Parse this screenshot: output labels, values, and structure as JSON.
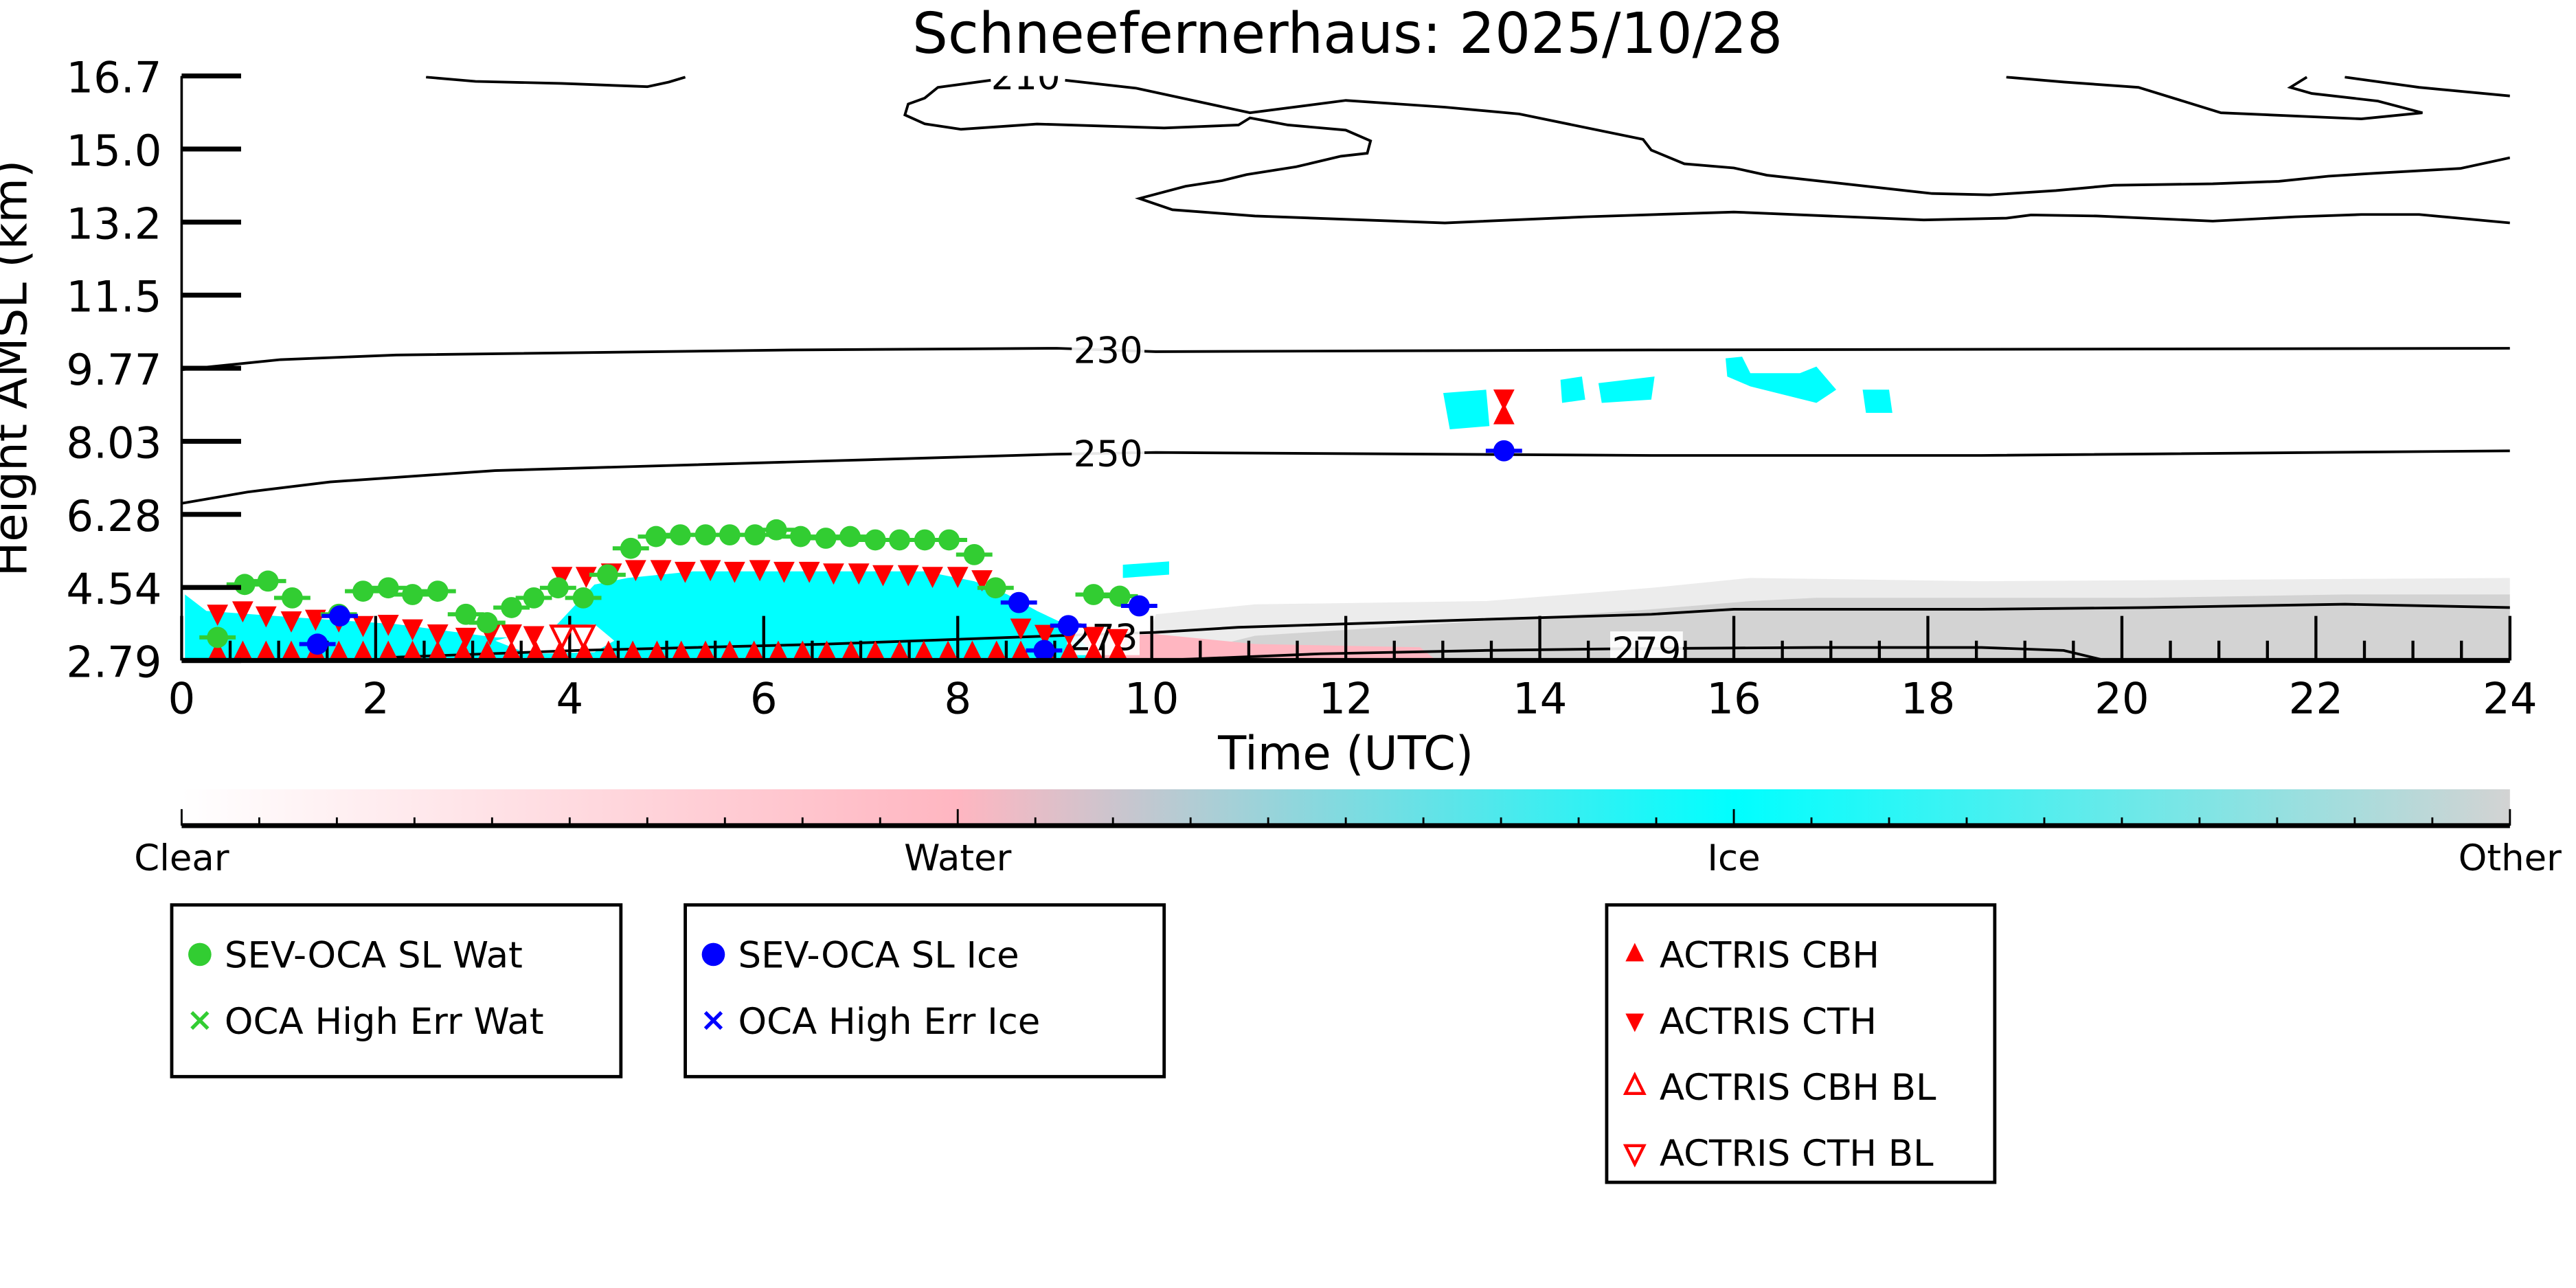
{
  "chart_data": {
    "type": "scatter",
    "title": "Schneefernerhaus: 2025/10/28",
    "xlabel": "Time (UTC)",
    "ylabel": "Height AMSL (km)",
    "xlim": [
      0,
      24
    ],
    "ylim": [
      2.79,
      16.7
    ],
    "xticks": [
      "0",
      "2",
      "4",
      "6",
      "8",
      "10",
      "12",
      "14",
      "16",
      "18",
      "20",
      "22",
      "24"
    ],
    "yticks": [
      "2.79",
      "4.54",
      "6.28",
      "8.03",
      "9.77",
      "11.5",
      "13.2",
      "15.0",
      "16.7"
    ],
    "colorbar": {
      "labels": [
        "Clear",
        "Water",
        "Ice",
        "Other"
      ],
      "colors": [
        "#ffffff",
        "#ffb6c1",
        "#00ffff",
        "#d3d3d3"
      ]
    },
    "contours": [
      {
        "level": "230",
        "label_at": [
          9.55,
          10.18
        ],
        "points": [
          [
            0,
            9.71
          ],
          [
            1.02,
            9.95
          ],
          [
            2.21,
            10.06
          ],
          [
            6.3,
            10.18
          ],
          [
            9.02,
            10.22
          ],
          [
            10.04,
            10.14
          ],
          [
            15.15,
            10.18
          ],
          [
            24,
            10.22
          ]
        ]
      },
      {
        "level": "250",
        "label_at": [
          9.55,
          7.72
        ],
        "points": [
          [
            0,
            6.53
          ],
          [
            0.68,
            6.8
          ],
          [
            1.53,
            7.04
          ],
          [
            3.23,
            7.31
          ],
          [
            8.0,
            7.63
          ],
          [
            9.02,
            7.7
          ],
          [
            10.04,
            7.74
          ],
          [
            15.15,
            7.67
          ],
          [
            18.55,
            7.67
          ],
          [
            24,
            7.78
          ]
        ]
      },
      {
        "level": "273",
        "label_at": [
          9.5,
          3.35
        ],
        "points": [
          [
            2.21,
            2.87
          ],
          [
            4.09,
            3.03
          ],
          [
            6.64,
            3.18
          ],
          [
            9.02,
            3.38
          ],
          [
            10.04,
            3.46
          ],
          [
            10.89,
            3.58
          ],
          [
            13.45,
            3.77
          ],
          [
            15.15,
            3.89
          ],
          [
            16.0,
            4.01
          ],
          [
            18.55,
            4.01
          ],
          [
            20.26,
            4.05
          ],
          [
            22.3,
            4.13
          ],
          [
            24,
            4.05
          ]
        ]
      },
      {
        "level": "279",
        "label_at": [
          15.1,
          3.05
        ],
        "points": [
          [
            10.04,
            2.79
          ],
          [
            11.74,
            2.95
          ],
          [
            13.45,
            3.03
          ],
          [
            14.81,
            3.07
          ],
          [
            16.85,
            3.1
          ],
          [
            18.55,
            3.1
          ],
          [
            19.4,
            3.03
          ],
          [
            19.83,
            2.79
          ]
        ]
      },
      {
        "level": "210",
        "label_at": [
          8.7,
          16.7
        ],
        "points": []
      }
    ],
    "series": [
      {
        "name": "SEV-OCA SL Wat",
        "marker": "circle",
        "color": "#32cd32",
        "t": [
          0.37,
          0.65,
          0.89,
          1.14,
          1.62,
          1.87,
          2.13,
          2.38,
          2.64,
          2.93,
          3.15,
          3.4,
          3.63,
          3.88,
          4.14,
          4.39,
          4.63,
          4.89,
          5.14,
          5.4,
          5.65,
          5.91,
          6.13,
          6.38,
          6.64,
          6.89,
          7.15,
          7.4,
          7.66,
          7.91,
          8.17,
          8.39,
          9.4,
          9.67
        ],
        "h": [
          3.34,
          4.6,
          4.68,
          4.28,
          3.89,
          4.44,
          4.52,
          4.36,
          4.44,
          3.89,
          3.69,
          4.05,
          4.28,
          4.52,
          4.28,
          4.83,
          5.46,
          5.74,
          5.78,
          5.78,
          5.78,
          5.78,
          5.9,
          5.74,
          5.7,
          5.74,
          5.66,
          5.66,
          5.66,
          5.66,
          5.31,
          4.52,
          4.36,
          4.32
        ]
      },
      {
        "name": "OCA High Err Wat",
        "marker": "x",
        "color": "#32cd32",
        "t": [],
        "h": []
      },
      {
        "name": "SEV-OCA SL Ice",
        "marker": "circle",
        "color": "#0000ff",
        "t": [
          1.4,
          1.63,
          8.63,
          8.89,
          9.14,
          9.87,
          13.63
        ],
        "h": [
          3.18,
          3.85,
          4.17,
          3.03,
          3.62,
          4.09,
          7.78
        ]
      },
      {
        "name": "OCA High Err Ice",
        "marker": "x",
        "color": "#0000ff",
        "t": [],
        "h": []
      },
      {
        "name": "ACTRIS CBH",
        "marker": "triangle-up",
        "color": "#ff0000",
        "t": [
          0.37,
          0.63,
          0.87,
          1.13,
          1.38,
          1.62,
          1.87,
          2.13,
          2.38,
          2.64,
          2.9,
          3.15,
          3.4,
          3.65,
          3.9,
          4.15,
          4.4,
          4.65,
          4.9,
          5.15,
          5.4,
          5.65,
          5.9,
          6.15,
          6.4,
          6.65,
          6.9,
          7.15,
          7.4,
          7.65,
          7.9,
          8.15,
          8.4,
          8.65,
          8.9,
          9.15,
          9.4,
          9.65,
          13.63
        ],
        "h": [
          2.95,
          2.95,
          2.95,
          2.95,
          2.95,
          2.95,
          2.95,
          2.95,
          2.95,
          2.95,
          2.95,
          2.95,
          2.95,
          2.95,
          2.95,
          2.95,
          2.95,
          2.95,
          2.95,
          2.95,
          2.95,
          2.95,
          2.95,
          2.95,
          2.95,
          2.95,
          2.95,
          2.95,
          2.95,
          2.95,
          2.95,
          2.95,
          2.95,
          2.95,
          2.95,
          2.95,
          2.95,
          2.95,
          8.6
        ]
      },
      {
        "name": "ACTRIS CTH",
        "marker": "triangle-down",
        "color": "#ff0000",
        "t": [
          0.37,
          0.63,
          0.87,
          1.13,
          1.38,
          1.62,
          1.87,
          2.13,
          2.38,
          2.64,
          2.93,
          3.18,
          3.4,
          3.63,
          3.92,
          4.17,
          4.43,
          4.68,
          4.94,
          5.19,
          5.45,
          5.7,
          5.96,
          6.21,
          6.47,
          6.72,
          6.98,
          7.23,
          7.49,
          7.74,
          8.0,
          8.25,
          8.65,
          8.9,
          9.15,
          9.4,
          9.65,
          13.63
        ],
        "h": [
          3.93,
          4.01,
          3.89,
          3.77,
          3.81,
          3.77,
          3.66,
          3.69,
          3.58,
          3.46,
          3.38,
          3.46,
          3.46,
          3.42,
          4.83,
          4.83,
          4.91,
          4.99,
          4.99,
          4.95,
          4.99,
          4.95,
          4.99,
          4.95,
          4.95,
          4.91,
          4.91,
          4.87,
          4.87,
          4.83,
          4.83,
          4.75,
          3.6,
          3.45,
          3.45,
          3.4,
          3.35,
          9.05
        ]
      },
      {
        "name": "ACTRIS CBH BL",
        "marker": "triangle-up-open",
        "color": "#ff0000",
        "t": [],
        "h": []
      },
      {
        "name": "ACTRIS CTH BL",
        "marker": "triangle-down-open",
        "color": "#ff0000",
        "t": [
          3.92,
          4.14
        ],
        "h": [
          3.42,
          3.42
        ]
      }
    ],
    "legend_groups": [
      [
        "SEV-OCA SL Wat",
        "OCA High Err Wat"
      ],
      [
        "SEV-OCA SL Ice",
        "OCA High Err Ice"
      ],
      [
        "ACTRIS CBH",
        "ACTRIS CTH",
        "ACTRIS CBH BL",
        "ACTRIS CTH BL"
      ]
    ]
  }
}
